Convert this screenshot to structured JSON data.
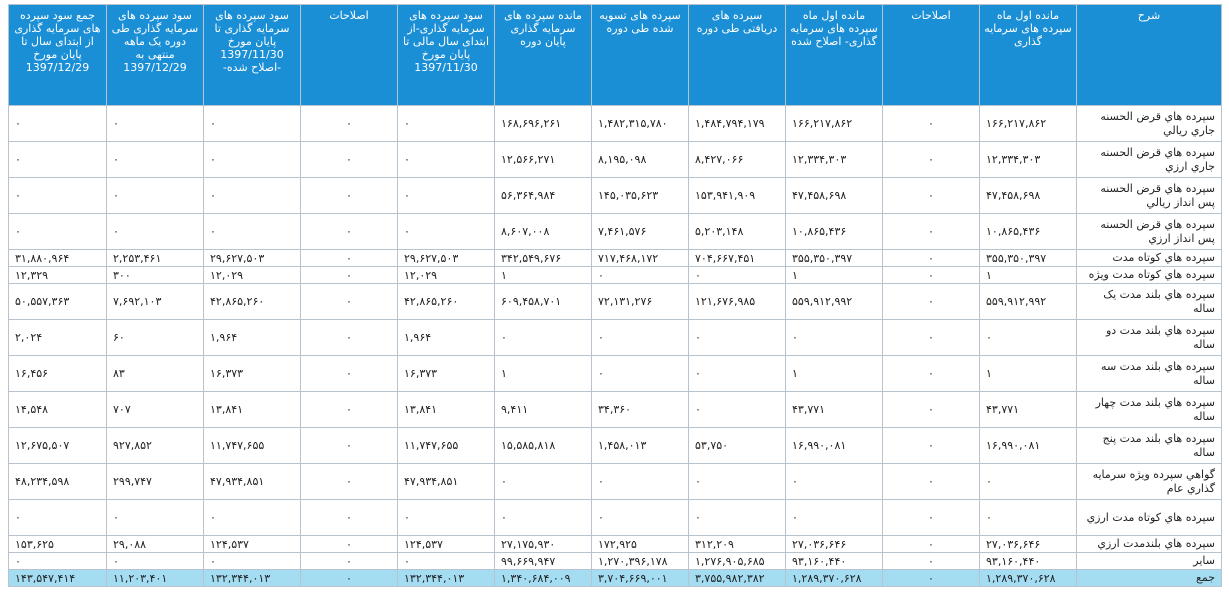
{
  "headers": [
    "شرح",
    "مانده اول ماه سپرده های سرمایه گذاری",
    "اصلاحات",
    "مانده اول ماه سپرده های سرمایه گذاری- اصلاح شده",
    "سپرده های دریافتی طی دوره",
    "سپرده های تسویه شده طی دوره",
    "مانده سپرده های سرمایه گذاری پایان دوره",
    "سود سپرده های سرمایه گذاری-از ابتدای سال مالی تا پایان مورخ 1397/11/30",
    "اصلاحات",
    "سود سپرده های سرمایه گذاری تا پایان مورخ 1397/11/30 -اصلاح شده-",
    "سود سپرده های سرمایه گذاری طی دوره یک ماهه منتهی به 1397/12/29",
    "جمع سود سپرده های سرمایه گذاری از ابتدای سال تا پایان مورخ 1397/12/29"
  ],
  "rows": [
    {
      "desc": "سپرده هاي قرض الحسنه جاري ريالي",
      "v": [
        "۱۶۶,۲۱۷,۸۶۲",
        "۰",
        "۱۶۶,۲۱۷,۸۶۲",
        "۱,۴۸۴,۷۹۴,۱۷۹",
        "۱,۴۸۲,۳۱۵,۷۸۰",
        "۱۶۸,۶۹۶,۲۶۱",
        "۰",
        "۰",
        "۰",
        "۰",
        "۰"
      ]
    },
    {
      "desc": "سپرده هاي قرض الحسنه جاري ارزي",
      "v": [
        "۱۲,۳۳۴,۳۰۳",
        "۰",
        "۱۲,۳۳۴,۳۰۳",
        "۸,۴۲۷,۰۶۶",
        "۸,۱۹۵,۰۹۸",
        "۱۲,۵۶۶,۲۷۱",
        "۰",
        "۰",
        "۰",
        "۰",
        "۰"
      ]
    },
    {
      "desc": "سپرده هاي قرض الحسنه پس انداز ريالي",
      "v": [
        "۴۷,۴۵۸,۶۹۸",
        "۰",
        "۴۷,۴۵۸,۶۹۸",
        "۱۵۳,۹۴۱,۹۰۹",
        "۱۴۵,۰۳۵,۶۲۳",
        "۵۶,۳۶۴,۹۸۴",
        "۰",
        "۰",
        "۰",
        "۰",
        "۰"
      ]
    },
    {
      "desc": "سپرده هاي قرض الحسنه پس انداز ارزي",
      "v": [
        "۱۰,۸۶۵,۴۳۶",
        "۰",
        "۱۰,۸۶۵,۴۳۶",
        "۵,۲۰۳,۱۴۸",
        "۷,۴۶۱,۵۷۶",
        "۸,۶۰۷,۰۰۸",
        "۰",
        "۰",
        "۰",
        "۰",
        "۰"
      ]
    },
    {
      "desc": "سپرده هاي کوتاه مدت",
      "v": [
        "۳۵۵,۳۵۰,۳۹۷",
        "۰",
        "۳۵۵,۳۵۰,۳۹۷",
        "۷۰۴,۶۶۷,۴۵۱",
        "۷۱۷,۴۶۸,۱۷۲",
        "۳۴۲,۵۴۹,۶۷۶",
        "۲۹,۶۲۷,۵۰۳",
        "۰",
        "۲۹,۶۲۷,۵۰۳",
        "۲,۲۵۳,۴۶۱",
        "۳۱,۸۸۰,۹۶۴"
      ]
    },
    {
      "desc": "سپرده هاي کوتاه مدت ويژه",
      "v": [
        "۱",
        "۰",
        "۱",
        "۰",
        "۰",
        "۱",
        "۱۲,۰۲۹",
        "۰",
        "۱۲,۰۲۹",
        "۳۰۰",
        "۱۲,۳۲۹"
      ]
    },
    {
      "desc": "سپرده هاي بلند مدت يک ساله",
      "v": [
        "۵۵۹,۹۱۲,۹۹۲",
        "۰",
        "۵۵۹,۹۱۲,۹۹۲",
        "۱۲۱,۶۷۶,۹۸۵",
        "۷۲,۱۳۱,۲۷۶",
        "۶۰۹,۴۵۸,۷۰۱",
        "۴۲,۸۶۵,۲۶۰",
        "۰",
        "۴۲,۸۶۵,۲۶۰",
        "۷,۶۹۲,۱۰۳",
        "۵۰,۵۵۷,۳۶۳"
      ]
    },
    {
      "desc": "سپرده هاي بلند مدت دو ساله",
      "v": [
        "۰",
        "۰",
        "۰",
        "۰",
        "۰",
        "۰",
        "۱,۹۶۴",
        "۰",
        "۱,۹۶۴",
        "۶۰",
        "۲,۰۲۴"
      ]
    },
    {
      "desc": "سپرده هاي بلند مدت سه ساله",
      "v": [
        "۱",
        "۰",
        "۱",
        "۰",
        "۰",
        "۱",
        "۱۶,۳۷۳",
        "۰",
        "۱۶,۳۷۳",
        "۸۳",
        "۱۶,۴۵۶"
      ]
    },
    {
      "desc": "سپرده هاي بلند مدت چهار ساله",
      "v": [
        "۴۳,۷۷۱",
        "۰",
        "۴۳,۷۷۱",
        "۰",
        "۳۴,۳۶۰",
        "۹,۴۱۱",
        "۱۳,۸۴۱",
        "۰",
        "۱۳,۸۴۱",
        "۷۰۷",
        "۱۴,۵۴۸"
      ]
    },
    {
      "desc": "سپرده هاي بلند مدت پنج ساله",
      "v": [
        "۱۶,۹۹۰,۰۸۱",
        "۰",
        "۱۶,۹۹۰,۰۸۱",
        "۵۳,۷۵۰",
        "۱,۴۵۸,۰۱۳",
        "۱۵,۵۸۵,۸۱۸",
        "۱۱,۷۴۷,۶۵۵",
        "۰",
        "۱۱,۷۴۷,۶۵۵",
        "۹۲۷,۸۵۲",
        "۱۲,۶۷۵,۵۰۷"
      ]
    },
    {
      "desc": "گواهي سپرده ويژه سرمايه گذاري عام",
      "v": [
        "۰",
        "۰",
        "۰",
        "۰",
        "۰",
        "۰",
        "۴۷,۹۳۴,۸۵۱",
        "۰",
        "۴۷,۹۳۴,۸۵۱",
        "۲۹۹,۷۴۷",
        "۴۸,۲۳۴,۵۹۸"
      ]
    },
    {
      "desc": "سپرده هاي کوتاه مدت ارزي",
      "v": [
        "۰",
        "۰",
        "۰",
        "۰",
        "۰",
        "۰",
        "۰",
        "۰",
        "۰",
        "۰",
        "۰"
      ]
    },
    {
      "desc": "سپرده هاي بلندمدت ارزي",
      "v": [
        "۲۷,۰۳۶,۶۴۶",
        "۰",
        "۲۷,۰۳۶,۶۴۶",
        "۳۱۲,۲۰۹",
        "۱۷۲,۹۲۵",
        "۲۷,۱۷۵,۹۳۰",
        "۱۲۴,۵۳۷",
        "۰",
        "۱۲۴,۵۳۷",
        "۲۹,۰۸۸",
        "۱۵۳,۶۲۵"
      ]
    },
    {
      "desc": "ساير",
      "v": [
        "۹۳,۱۶۰,۴۴۰",
        "۰",
        "۹۳,۱۶۰,۴۴۰",
        "۱,۲۷۶,۹۰۵,۶۸۵",
        "۱,۲۷۰,۳۹۶,۱۷۸",
        "۹۹,۶۶۹,۹۴۷",
        "۰",
        "۰",
        "۰",
        "۰",
        "۰"
      ]
    }
  ],
  "total": {
    "desc": "جمع",
    "v": [
      "۱,۲۸۹,۳۷۰,۶۲۸",
      "۰",
      "۱,۲۸۹,۳۷۰,۶۲۸",
      "۳,۷۵۵,۹۸۲,۳۸۲",
      "۳,۷۰۴,۶۶۹,۰۰۱",
      "۱,۳۴۰,۶۸۴,۰۰۹",
      "۱۳۲,۳۴۴,۰۱۳",
      "۰",
      "۱۳۲,۳۴۴,۰۱۳",
      "۱۱,۲۰۳,۴۰۱",
      "۱۴۳,۵۴۷,۴۱۴"
    ]
  }
}
